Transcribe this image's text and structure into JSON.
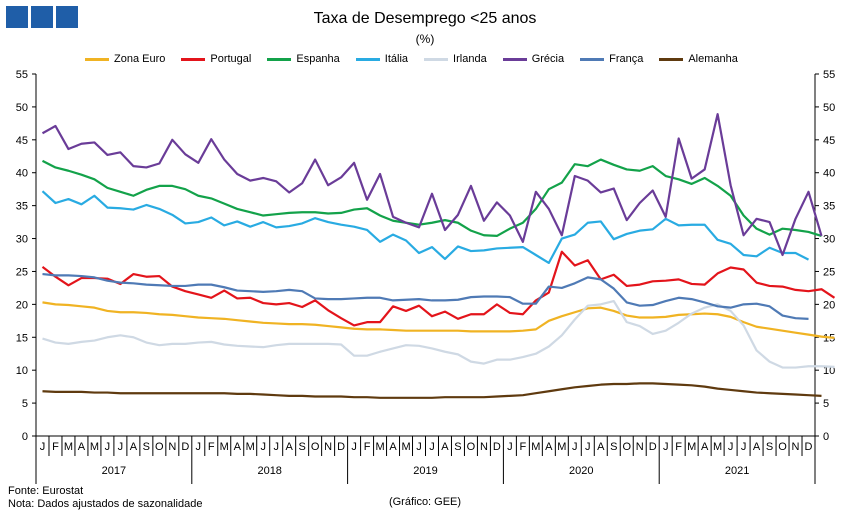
{
  "chart_data": {
    "type": "line",
    "title": "Taxa de Desemprego <25 anos",
    "subtitle": "(%)",
    "source": "Fonte: Eurostat",
    "note": "Nota: Dados ajustados de sazonalidade",
    "credit": "(Gráfico: GEE)",
    "ylim": [
      0,
      55
    ],
    "yticks": [
      0,
      5,
      10,
      15,
      20,
      25,
      30,
      35,
      40,
      45,
      50,
      55
    ],
    "month_labels": [
      "J",
      "F",
      "M",
      "A",
      "M",
      "J",
      "J",
      "A",
      "S",
      "O",
      "N",
      "D"
    ],
    "years": [
      "2017",
      "2018",
      "2019",
      "2020",
      "2021"
    ],
    "series": [
      {
        "name": "Zona Euro",
        "color": "#f0b323",
        "values": [
          20.3,
          20.0,
          19.9,
          19.7,
          19.5,
          19.0,
          18.8,
          18.8,
          18.7,
          18.5,
          18.4,
          18.2,
          18.0,
          17.9,
          17.8,
          17.6,
          17.4,
          17.2,
          17.1,
          17.0,
          17.0,
          16.9,
          16.7,
          16.5,
          16.3,
          16.2,
          16.2,
          16.1,
          16.0,
          16.0,
          16.0,
          16.0,
          16.0,
          15.9,
          15.9,
          15.9,
          15.9,
          16.0,
          16.2,
          17.5,
          18.2,
          18.8,
          19.4,
          19.5,
          19.0,
          18.3,
          18.0,
          18.0,
          18.1,
          18.4,
          18.5,
          18.6,
          18.5,
          18.1,
          17.3,
          16.6,
          16.3,
          16.0,
          15.7,
          15.4,
          15.1,
          14.9
        ]
      },
      {
        "name": "Portugal",
        "color": "#e3141b",
        "values": [
          25.7,
          24.2,
          22.9,
          24.0,
          24.0,
          23.9,
          23.1,
          24.6,
          24.2,
          24.3,
          22.7,
          22.0,
          21.5,
          21.0,
          22.1,
          20.9,
          21.0,
          20.2,
          20.0,
          20.2,
          19.6,
          20.6,
          19.1,
          17.9,
          16.8,
          17.3,
          17.3,
          19.7,
          19.0,
          19.8,
          18.2,
          18.9,
          17.8,
          18.5,
          18.5,
          20.0,
          18.7,
          18.5,
          20.6,
          21.8,
          28.0,
          25.9,
          26.7,
          23.8,
          24.5,
          22.8,
          23.0,
          23.5,
          23.6,
          23.8,
          23.1,
          23.0,
          24.7,
          25.6,
          25.3,
          23.3,
          22.8,
          22.7,
          22.2,
          22.0,
          22.3,
          21.0
        ]
      },
      {
        "name": "Espanha",
        "color": "#13a24a",
        "values": [
          41.8,
          40.8,
          40.3,
          39.7,
          39.0,
          37.7,
          37.1,
          36.5,
          37.4,
          38.0,
          38.0,
          37.5,
          36.5,
          36.1,
          35.3,
          34.5,
          34.0,
          33.5,
          33.7,
          33.9,
          34.0,
          34.0,
          33.8,
          33.9,
          34.4,
          34.6,
          33.5,
          32.7,
          32.4,
          32.1,
          32.4,
          32.8,
          32.4,
          31.2,
          30.5,
          30.4,
          31.5,
          32.4,
          34.5,
          37.5,
          38.5,
          41.3,
          41.0,
          42.0,
          41.2,
          40.5,
          40.3,
          41.0,
          39.5,
          39.0,
          38.3,
          39.2,
          38.0,
          36.5,
          33.5,
          31.5,
          30.6,
          31.5,
          31.3,
          31.0,
          30.4
        ]
      },
      {
        "name": "Itália",
        "color": "#29abe2",
        "values": [
          37.2,
          35.4,
          36.0,
          35.2,
          36.5,
          34.7,
          34.6,
          34.4,
          35.1,
          34.5,
          33.6,
          32.3,
          32.5,
          33.2,
          32.0,
          32.6,
          31.8,
          32.5,
          31.7,
          31.9,
          32.3,
          33.1,
          32.5,
          32.1,
          31.8,
          31.3,
          29.5,
          30.6,
          29.7,
          27.8,
          28.7,
          26.9,
          28.8,
          28.1,
          28.2,
          28.5,
          28.6,
          28.7,
          27.5,
          26.3,
          30.0,
          30.6,
          32.4,
          32.6,
          29.9,
          30.7,
          31.2,
          31.4,
          33.0,
          32.0,
          32.1,
          32.1,
          29.8,
          29.2,
          27.5,
          27.3,
          28.6,
          27.8,
          27.8,
          26.8
        ]
      },
      {
        "name": "Irlanda",
        "color": "#cfd9e4",
        "values": [
          14.8,
          14.2,
          14.0,
          14.3,
          14.5,
          15.0,
          15.3,
          15.0,
          14.2,
          13.8,
          14.0,
          14.0,
          14.2,
          14.3,
          13.9,
          13.7,
          13.6,
          13.5,
          13.8,
          14.0,
          14.0,
          14.0,
          14.0,
          13.9,
          12.2,
          12.2,
          12.8,
          13.3,
          13.8,
          13.7,
          13.3,
          12.8,
          12.4,
          11.3,
          11.0,
          11.6,
          11.6,
          12.0,
          12.5,
          13.6,
          15.3,
          17.7,
          19.8,
          20.0,
          20.5,
          17.3,
          16.7,
          15.5,
          16.0,
          17.2,
          18.6,
          19.5,
          20.0,
          19.0,
          16.8,
          13.0,
          11.3,
          10.4,
          10.4,
          10.6,
          10.6,
          10.5
        ]
      },
      {
        "name": "Grécia",
        "color": "#6a3c98",
        "values": [
          46.0,
          47.1,
          43.6,
          44.4,
          44.6,
          42.7,
          43.1,
          41.0,
          40.8,
          41.4,
          45.0,
          42.8,
          41.5,
          45.1,
          42.0,
          39.8,
          38.8,
          39.2,
          38.7,
          37.0,
          38.4,
          42.0,
          38.1,
          39.3,
          41.5,
          35.9,
          39.8,
          33.3,
          32.4,
          31.7,
          36.8,
          31.3,
          33.6,
          38.0,
          32.7,
          35.5,
          33.5,
          29.5,
          37.1,
          34.5,
          30.5,
          39.5,
          38.8,
          37.0,
          37.6,
          32.8,
          35.4,
          37.3,
          33.3,
          45.2,
          39.1,
          40.5,
          48.9,
          38.1,
          30.5,
          33.0,
          32.5,
          27.5,
          33.0,
          37.1,
          30.4
        ]
      },
      {
        "name": "França",
        "color": "#4f7ab5",
        "values": [
          24.6,
          24.4,
          24.4,
          24.3,
          24.1,
          23.6,
          23.3,
          23.2,
          23.0,
          22.9,
          22.8,
          22.8,
          23.0,
          23.0,
          22.6,
          22.1,
          22.0,
          21.9,
          22.0,
          22.2,
          22.0,
          20.9,
          20.8,
          20.8,
          20.9,
          21.0,
          21.0,
          20.6,
          20.7,
          20.8,
          20.6,
          20.6,
          20.7,
          21.1,
          21.2,
          21.2,
          21.1,
          20.1,
          20.1,
          22.7,
          22.5,
          23.2,
          24.1,
          23.8,
          22.4,
          20.3,
          19.8,
          19.9,
          20.5,
          21.0,
          20.8,
          20.3,
          19.7,
          19.5,
          20.0,
          20.1,
          19.7,
          18.3,
          17.9,
          17.8
        ]
      },
      {
        "name": "Alemanha",
        "color": "#5f3a0f",
        "values": [
          6.8,
          6.7,
          6.7,
          6.7,
          6.6,
          6.6,
          6.5,
          6.5,
          6.5,
          6.5,
          6.5,
          6.5,
          6.5,
          6.5,
          6.5,
          6.4,
          6.4,
          6.3,
          6.2,
          6.1,
          6.1,
          6.0,
          6.0,
          6.0,
          5.9,
          5.9,
          5.8,
          5.8,
          5.8,
          5.8,
          5.8,
          5.9,
          5.9,
          5.9,
          5.9,
          6.0,
          6.1,
          6.2,
          6.5,
          6.8,
          7.1,
          7.4,
          7.6,
          7.8,
          7.9,
          7.9,
          8.0,
          8.0,
          7.9,
          7.8,
          7.7,
          7.5,
          7.2,
          7.0,
          6.8,
          6.6,
          6.5,
          6.4,
          6.3,
          6.2,
          6.1
        ]
      }
    ]
  }
}
